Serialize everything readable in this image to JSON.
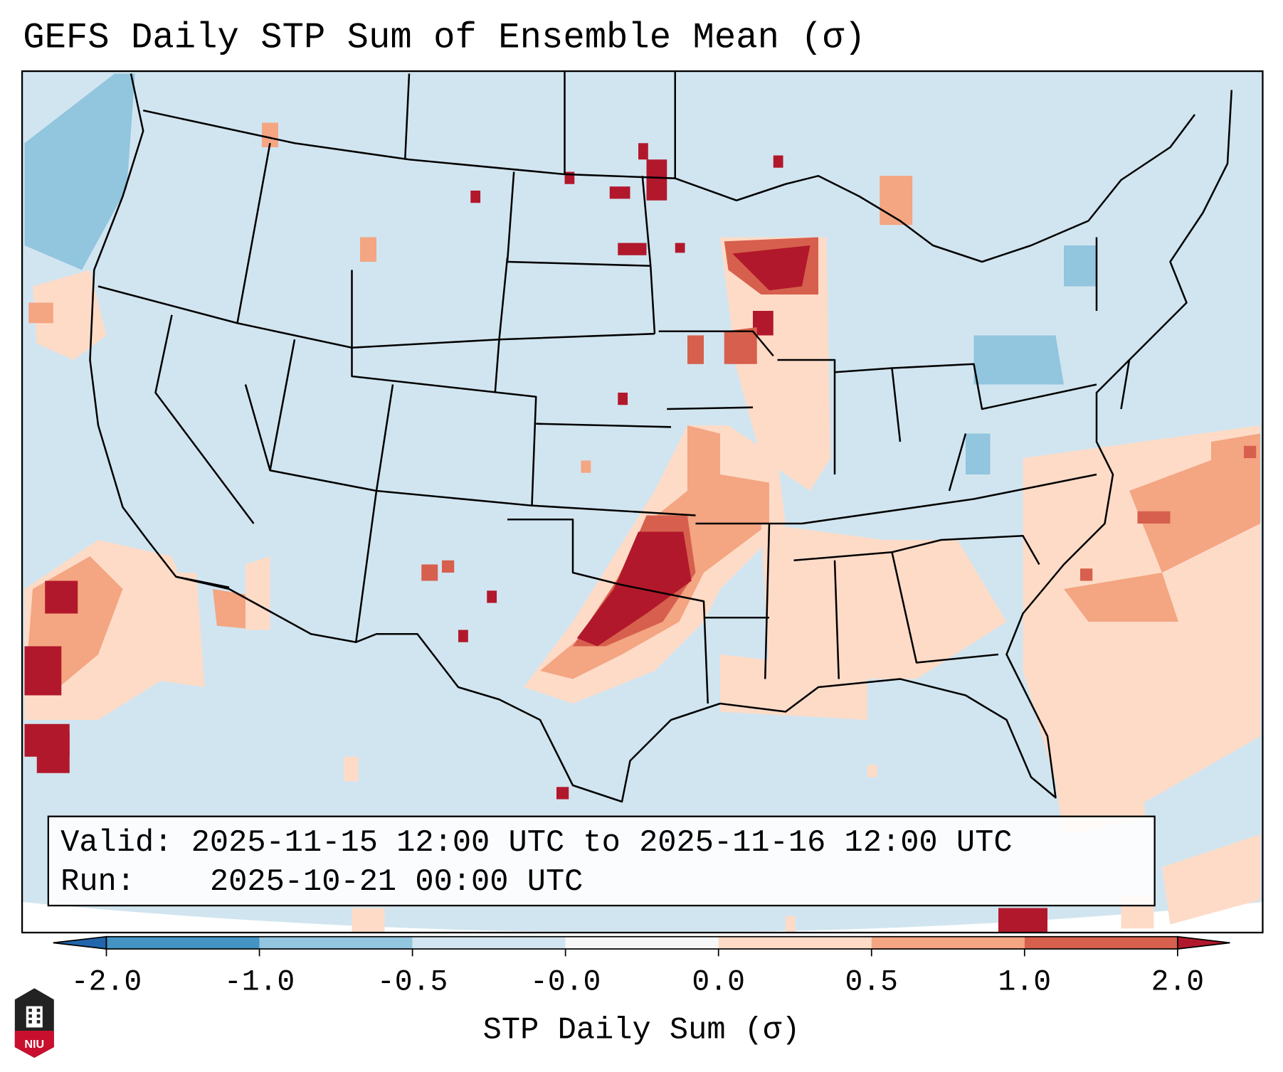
{
  "title": "GEFS Daily STP Sum of Ensemble Mean (σ)",
  "legend": {
    "valid_label": "Valid:",
    "valid_value": "2025-11-15 12:00 UTC to 2025-11-16 12:00 UTC",
    "run_label": "Run:",
    "run_value": "2025-10-21 00:00 UTC"
  },
  "logo_text": "NIU",
  "chart_data": {
    "type": "heatmap",
    "title": "GEFS Daily STP Sum of Ensemble Mean (σ)",
    "colorbar": {
      "label": "STP Daily Sum (σ)",
      "ticks": [
        "-2.0",
        "-1.0",
        "-0.5",
        "-0.0",
        "0.0",
        "0.5",
        "1.0",
        "2.0"
      ],
      "bounds": [
        -2.0,
        -1.0,
        -0.5,
        -0.0,
        0.0,
        0.5,
        1.0,
        2.0
      ],
      "colors": [
        "#4393c3",
        "#92c5de",
        "#d1e5f0",
        "#f7f7f7",
        "#fddbc7",
        "#f4a582",
        "#d6604d"
      ],
      "under_color": "#2166ac",
      "over_color": "#b2182b",
      "extend": "both"
    },
    "region": "CONUS",
    "highlights": [
      "Southern Plains (OK/KS/TX) max > 2.0σ",
      "Wisconsin / Upper Midwest > 1.0σ",
      "Eastern Pacific off Baja > 1.0σ",
      "Pacific Northwest offshore < -0.5σ"
    ]
  }
}
